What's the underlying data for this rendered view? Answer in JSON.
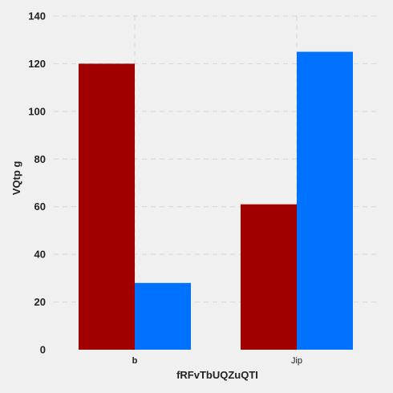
{
  "chart_data": {
    "type": "bar",
    "categories": [
      "b",
      "Jip"
    ],
    "series": [
      {
        "values": [
          120,
          61
        ],
        "color": "#a00000"
      },
      {
        "values": [
          28,
          125
        ],
        "color": "#0072ff"
      }
    ],
    "xlabel": "fRFvTbUQZuQTI",
    "ylabel": "VQtp g",
    "ylim": [
      0,
      140
    ],
    "yticks": [
      0,
      20,
      40,
      60,
      80,
      100,
      120,
      140
    ],
    "grid": true,
    "background": "#f0f0f0"
  }
}
